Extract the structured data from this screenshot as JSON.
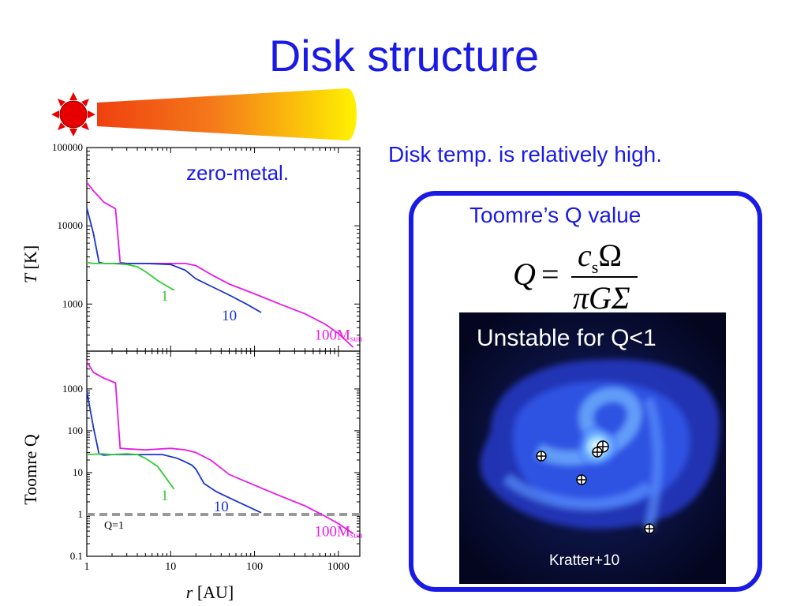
{
  "slide": {
    "title": "Disk structure",
    "note": "Disk temp. is relatively high.",
    "qbox_title": "Toomre’s Q value",
    "image_title": "Unstable for Q<1",
    "image_credit": "Kratter+10"
  },
  "formula": {
    "lhs": "Q",
    "eq": "=",
    "num_c": "c",
    "num_sub": "s",
    "num_omega": "Ω",
    "den": "πGΣ"
  },
  "colors": {
    "title": "#1a1ae6",
    "series_1": "#33cc33",
    "series_10": "#1a33cc",
    "series_100": "#e61ae6",
    "qline": "#999999",
    "sun": "#e60000"
  },
  "chart_data": [
    {
      "type": "line",
      "title": "",
      "annotation": "zero-metal.",
      "xlabel": "",
      "ylabel_italic": "T",
      "ylabel_rest": " [K]",
      "xscale": "log",
      "yscale": "log",
      "xlim": [
        1,
        1800
      ],
      "ylim": [
        250,
        100000
      ],
      "yticks": [
        {
          "v": 1000,
          "label": "1000"
        },
        {
          "v": 10000,
          "label": "10000"
        },
        {
          "v": 100000,
          "label": "100000"
        }
      ],
      "series": [
        {
          "name": "1",
          "color": "#33cc33",
          "x": [
            1,
            1.2,
            1.5,
            2,
            3,
            4,
            5,
            7,
            9,
            11
          ],
          "y": [
            3400,
            3300,
            3300,
            3300,
            3200,
            3000,
            2600,
            2000,
            1700,
            1500
          ]
        },
        {
          "name": "10",
          "color": "#1a33cc",
          "x": [
            1,
            1.2,
            1.4,
            1.6,
            2,
            3,
            5,
            10,
            15,
            20,
            30,
            50,
            80,
            120
          ],
          "y": [
            17000,
            8000,
            3400,
            3300,
            3300,
            3300,
            3300,
            3200,
            2700,
            2100,
            1700,
            1300,
            1000,
            780
          ]
        },
        {
          "name": "100M",
          "sub": "sun",
          "color": "#e61ae6",
          "x": [
            1,
            1.2,
            1.6,
            2.2,
            2.5,
            3,
            5,
            10,
            15,
            20,
            30,
            50,
            100,
            200,
            400,
            700,
            1000,
            1500
          ],
          "y": [
            36000,
            28000,
            20000,
            16500,
            3400,
            3300,
            3300,
            3300,
            3300,
            3100,
            2400,
            1800,
            1350,
            1000,
            750,
            550,
            420,
            280
          ]
        }
      ],
      "labels": [
        {
          "text": "1",
          "x": 8.5,
          "y": 1100
        },
        {
          "text": "10",
          "x": 50,
          "y": 620
        },
        {
          "text": "100M",
          "sub": "sun",
          "x": 1000,
          "y": 350
        }
      ]
    },
    {
      "type": "line",
      "title": "",
      "xlabel_italic": "r",
      "xlabel_rest": " [AU]",
      "ylabel": "Toomre Q",
      "xscale": "log",
      "yscale": "log",
      "xlim": [
        1,
        1800
      ],
      "ylim": [
        0.1,
        8000
      ],
      "xticks": [
        {
          "v": 1,
          "label": "1"
        },
        {
          "v": 10,
          "label": "10"
        },
        {
          "v": 100,
          "label": "100"
        },
        {
          "v": 1000,
          "label": "1000"
        }
      ],
      "yticks": [
        {
          "v": 0.1,
          "label": "0.1"
        },
        {
          "v": 1,
          "label": "1"
        },
        {
          "v": 10,
          "label": "10"
        },
        {
          "v": 100,
          "label": "100"
        },
        {
          "v": 1000,
          "label": "1000"
        }
      ],
      "reference_line": {
        "y": 1,
        "label": "Q=1",
        "style": "dashed"
      },
      "series": [
        {
          "name": "1",
          "color": "#33cc33",
          "x": [
            1,
            1.5,
            2,
            3,
            4,
            5,
            7,
            9,
            11
          ],
          "y": [
            27,
            28,
            27,
            28,
            27,
            22,
            14,
            7,
            4
          ]
        },
        {
          "name": "10",
          "color": "#1a33cc",
          "x": [
            1,
            1.2,
            1.4,
            1.6,
            2,
            3,
            5,
            8,
            12,
            15,
            18,
            20,
            25,
            35,
            50,
            80,
            120
          ],
          "y": [
            900,
            120,
            28,
            26,
            27,
            27,
            27,
            27,
            22,
            18,
            15,
            12,
            5.5,
            3.5,
            2.5,
            1.6,
            1.1
          ]
        },
        {
          "name": "100M",
          "sub": "sun",
          "color": "#e61ae6",
          "x": [
            1,
            1.2,
            1.6,
            2.2,
            2.5,
            3,
            5,
            10,
            15,
            20,
            30,
            50,
            100,
            200,
            400,
            700,
            1000,
            1500
          ],
          "y": [
            4500,
            2500,
            1800,
            1400,
            38,
            37,
            35,
            38,
            35,
            30,
            20,
            9,
            5,
            2.8,
            1.6,
            0.9,
            0.6,
            0.35
          ]
        }
      ],
      "labels": [
        {
          "text": "1",
          "x": 8.5,
          "y": 2.2
        },
        {
          "text": "10",
          "x": 40,
          "y": 1.2
        },
        {
          "text": "100M",
          "sub": "sun",
          "x": 1000,
          "y": 0.3
        }
      ]
    }
  ]
}
